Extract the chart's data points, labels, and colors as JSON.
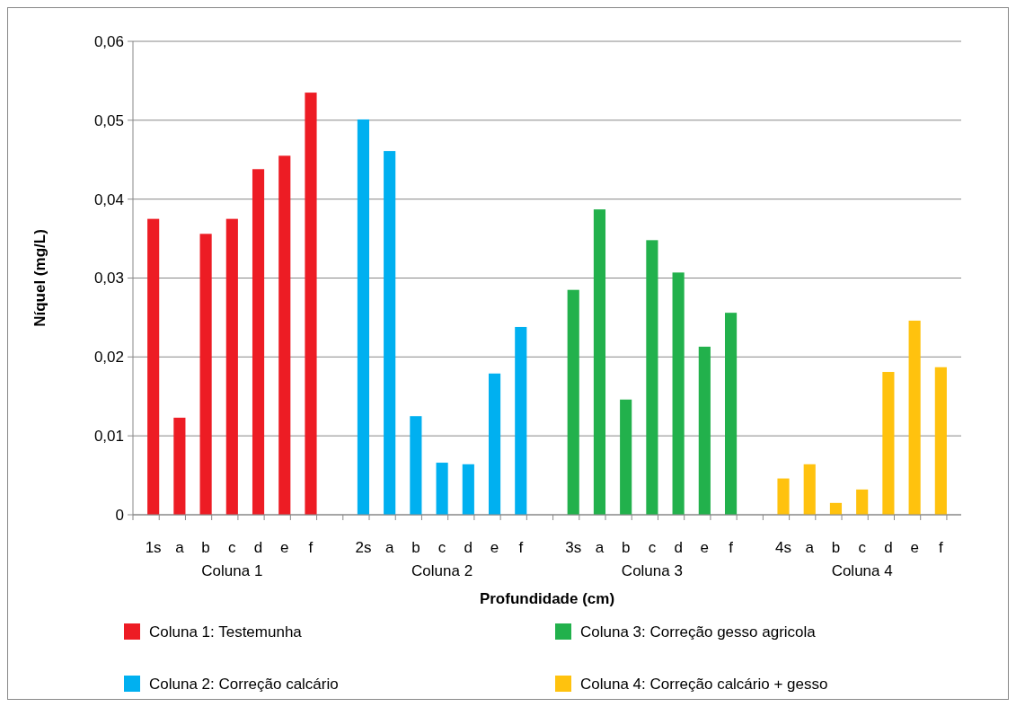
{
  "chart_data": {
    "type": "bar",
    "xlabel": "Profundidade (cm)",
    "ylabel": "Níquel (mg/L)",
    "categories": [
      "1s",
      "a",
      "b",
      "c",
      "d",
      "e",
      "f",
      null,
      "2s",
      "a",
      "b",
      "c",
      "d",
      "e",
      "f",
      null,
      "3s",
      "a",
      "b",
      "c",
      "d",
      "e",
      "f",
      null,
      "4s",
      "a",
      "b",
      "c",
      "d",
      "e",
      "f"
    ],
    "series": [
      {
        "name": "Coluna 1: Testemunha",
        "color": "#ed1c24",
        "values": [
          0.0375,
          0.0123,
          0.0356,
          0.0375,
          0.0438,
          0.0455,
          0.0535,
          null,
          null,
          null,
          null,
          null,
          null,
          null,
          null,
          null,
          null,
          null,
          null,
          null,
          null,
          null,
          null,
          null,
          null,
          null,
          null,
          null,
          null,
          null,
          null
        ]
      },
      {
        "name": "Coluna 2: Correção calcário",
        "color": "#00b0f0",
        "values": [
          null,
          null,
          null,
          null,
          null,
          null,
          null,
          null,
          0.0501,
          0.0461,
          0.0125,
          0.0066,
          0.0064,
          0.0179,
          0.0238,
          null,
          null,
          null,
          null,
          null,
          null,
          null,
          null,
          null,
          null,
          null,
          null,
          null,
          null,
          null,
          null
        ]
      },
      {
        "name": "Coluna 3: Correção gesso agricola",
        "color": "#22b14c",
        "values": [
          null,
          null,
          null,
          null,
          null,
          null,
          null,
          null,
          null,
          null,
          null,
          null,
          null,
          null,
          null,
          null,
          0.0285,
          0.0387,
          0.0146,
          0.0348,
          0.0307,
          0.0213,
          0.0256,
          null,
          null,
          null,
          null,
          null,
          null,
          null,
          null
        ]
      },
      {
        "name": "Coluna 4: Correção calcário + gesso",
        "color": "#ffc20e",
        "values": [
          null,
          null,
          null,
          null,
          null,
          null,
          null,
          null,
          null,
          null,
          null,
          null,
          null,
          null,
          null,
          null,
          null,
          null,
          null,
          null,
          null,
          null,
          null,
          null,
          0.0046,
          0.0064,
          0.0015,
          0.0032,
          0.0181,
          0.0246,
          0.0187
        ]
      }
    ],
    "annotations": [
      "Coluna 1",
      "Coluna 2",
      "Coluna 3",
      "Coluna 4"
    ],
    "ylim": [
      0,
      0.06
    ],
    "yticks": [
      0,
      {
        "value": 0.01,
        "label": "0,01"
      },
      {
        "value": 0.02,
        "label": "0,02"
      },
      {
        "value": 0.03,
        "label": "0,03"
      },
      {
        "value": 0.04,
        "label": "0,04"
      },
      {
        "value": 0.05,
        "label": "0,05"
      },
      {
        "value": 0.06,
        "label": "0,06"
      }
    ],
    "grid": "y",
    "legend": "bottom"
  }
}
